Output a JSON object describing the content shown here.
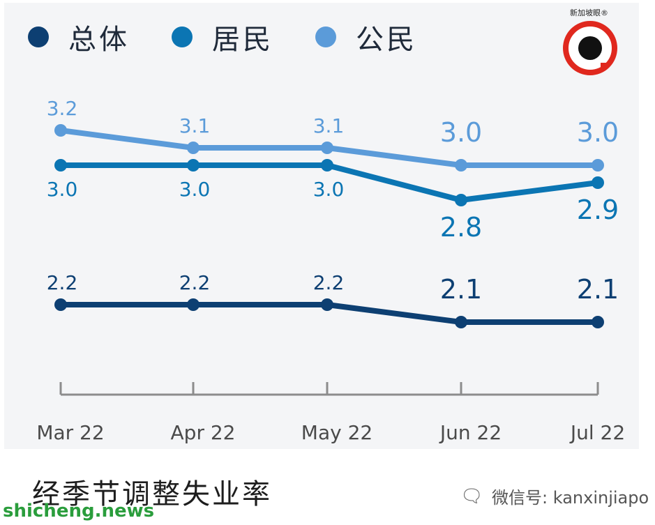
{
  "chart_data": {
    "type": "line",
    "categories": [
      "Mar 22",
      "Apr 22",
      "May 22",
      "Jun 22",
      "Jul 22"
    ],
    "series": [
      {
        "name": "总体",
        "values": [
          2.2,
          2.2,
          2.2,
          2.1,
          2.1
        ],
        "labels": [
          "2.2",
          "2.2",
          "2.2",
          "2.1",
          "2.1"
        ],
        "color": "#0d3f72"
      },
      {
        "name": "居民",
        "values": [
          3.0,
          3.0,
          3.0,
          2.8,
          2.9
        ],
        "labels": [
          "3.0",
          "3.0",
          "3.0",
          "2.8",
          "2.9"
        ],
        "color": "#0b75b3"
      },
      {
        "name": "公民",
        "values": [
          3.2,
          3.1,
          3.1,
          3.0,
          3.0
        ],
        "labels": [
          "3.2",
          "3.1",
          "3.1",
          "3.0",
          "3.0"
        ],
        "color": "#5b9bd9"
      }
    ],
    "title": "经季节调整失业率",
    "xlabel": "",
    "ylabel": "",
    "ylim": [
      1.9,
      3.4
    ],
    "grid": false,
    "legend": "top-left"
  },
  "legend": [
    {
      "label": "总体",
      "color": "#0d3f72"
    },
    {
      "label": "居民",
      "color": "#0b75b3"
    },
    {
      "label": "公民",
      "color": "#5b9bd9"
    }
  ],
  "logo": {
    "text": "新加坡眼®"
  },
  "footer": {
    "title": "经季节调整失业率",
    "wechat_label": "微信号: kanxinjiapo",
    "watermark": "shicheng.news"
  }
}
